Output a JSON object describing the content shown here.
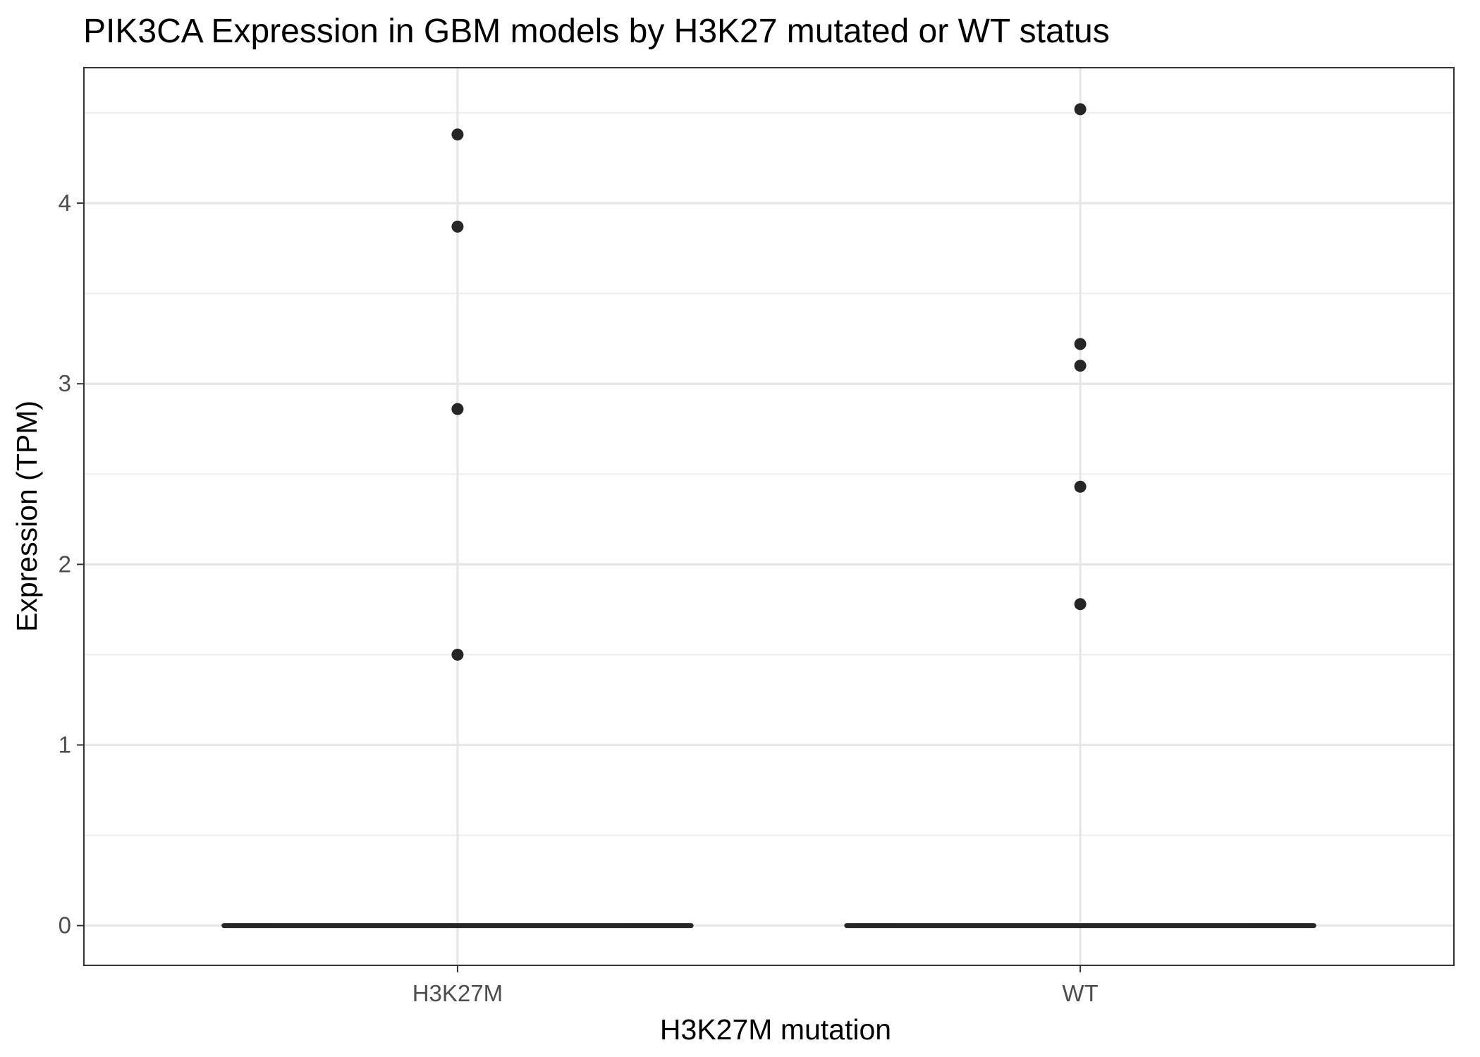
{
  "chart_data": {
    "type": "box",
    "title": "PIK3CA Expression in GBM models by H3K27 mutated or WT status",
    "xlabel": "H3K27M mutation",
    "ylabel": "Expression (TPM)",
    "categories": [
      "H3K27M",
      "WT"
    ],
    "ylim": [
      -0.22,
      4.75
    ],
    "yticks": [
      0,
      1,
      2,
      3,
      4
    ],
    "grid": true,
    "boxes": [
      {
        "category": "H3K27M",
        "median": 0,
        "q1": 0,
        "q3": 0,
        "whisker_low": 0,
        "whisker_high": 0,
        "outliers": [
          4.38,
          3.87,
          2.86,
          1.5
        ]
      },
      {
        "category": "WT",
        "median": 0,
        "q1": 0,
        "q3": 0,
        "whisker_low": 0,
        "whisker_high": 0,
        "outliers": [
          4.52,
          3.22,
          3.1,
          2.43,
          1.78
        ]
      }
    ],
    "colors": {
      "marks": "#262626",
      "grid": "#e6e6e6",
      "border": "#333333",
      "tick_text": "#4d4d4d"
    }
  }
}
